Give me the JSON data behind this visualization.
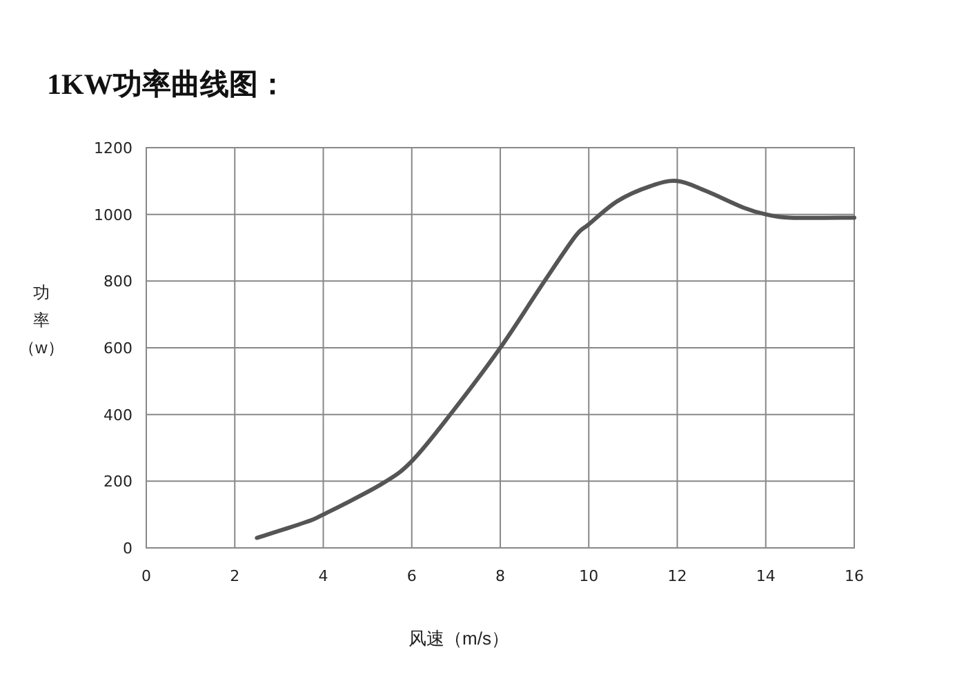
{
  "chart_data": {
    "type": "line",
    "title": "1KW功率曲线图：",
    "xlabel": "风速（m/s）",
    "ylabel": "功率（w）",
    "x": [
      2.5,
      3.6,
      4,
      5.3,
      6,
      6.9,
      8,
      9,
      9.7,
      10,
      10.65,
      11.4,
      12,
      12.65,
      13.5,
      14,
      14.55,
      16
    ],
    "series": [
      {
        "color": "#555555",
        "values": [
          30,
          77,
          100,
          190,
          260,
          405,
          600,
          800,
          935,
          970,
          1040,
          1085,
          1100,
          1070,
          1020,
          1000,
          990,
          990
        ]
      }
    ],
    "xlim": [
      0,
      16
    ],
    "ylim": [
      0,
      1200
    ],
    "xticks": [
      0,
      2,
      4,
      6,
      8,
      10,
      12,
      14,
      16
    ],
    "yticks": [
      0,
      200,
      400,
      600,
      800,
      1000,
      1200
    ],
    "grid": true,
    "marker": "none",
    "line_style": "solid"
  }
}
